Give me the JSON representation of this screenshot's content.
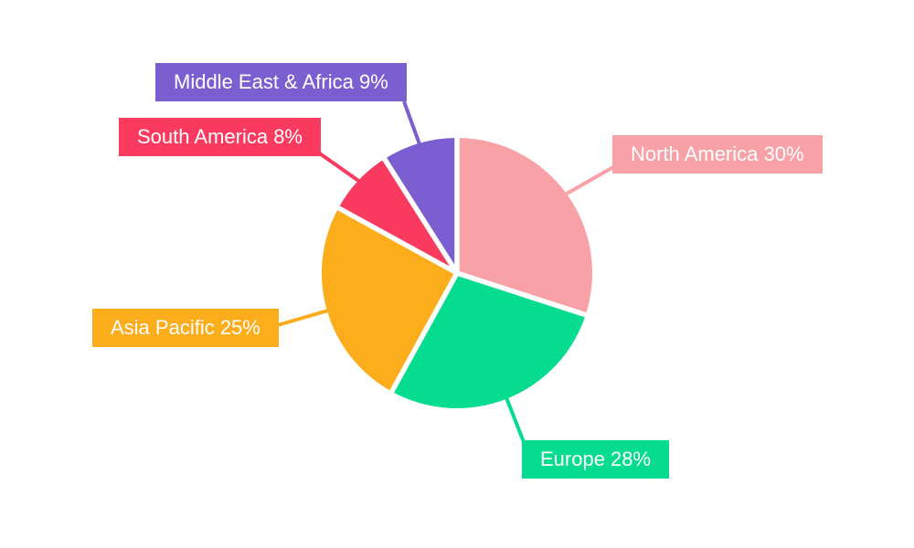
{
  "chart_data": {
    "type": "pie",
    "title": "",
    "unit": "%",
    "start_angle_deg": 0,
    "direction": "clockwise",
    "background_color": "#FFFFFF",
    "label_text_color": "#FFFFFF",
    "divider_color": "#FFFFFF",
    "legend_position": "callout-labels",
    "categories": [
      "North America",
      "Europe",
      "Asia Pacific",
      "South America",
      "Middle East & Africa"
    ],
    "values": [
      30,
      28,
      25,
      8,
      9
    ],
    "slices": [
      {
        "label": "North America",
        "value": 30,
        "display": "North America 30%",
        "color": "#F8A1A6"
      },
      {
        "label": "Europe",
        "value": 28,
        "display": "Europe 28%",
        "color": "#06DC8F"
      },
      {
        "label": "Asia Pacific",
        "value": 25,
        "display": "Asia Pacific 25%",
        "color": "#FBAD1B"
      },
      {
        "label": "South America",
        "value": 8,
        "display": "South America 8%",
        "color": "#FA3A5F"
      },
      {
        "label": "Middle East & Africa",
        "value": 9,
        "display": "Middle East & Africa 9%",
        "color": "#7B5ECF"
      }
    ]
  }
}
